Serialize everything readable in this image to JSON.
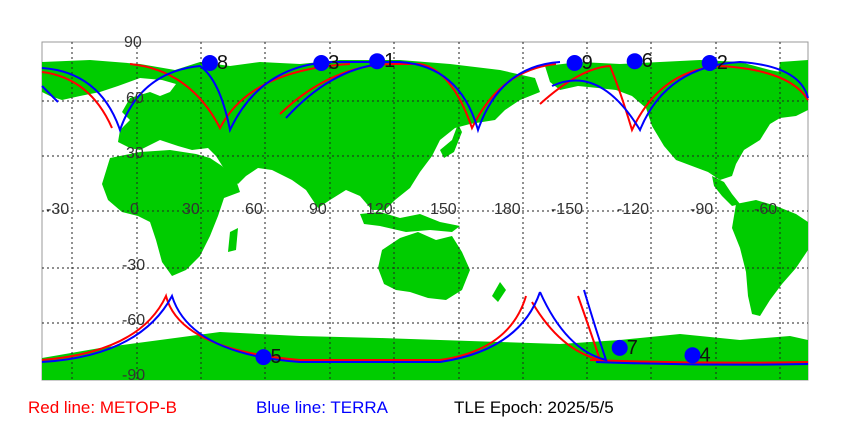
{
  "map": {
    "lat_labels": [
      "90",
      "60",
      "30",
      "-30",
      "-60",
      "-90"
    ],
    "lon_labels": [
      "-30",
      "0",
      "30",
      "60",
      "90",
      "120",
      "150",
      "180",
      "-150",
      "-120",
      "-90",
      "-60"
    ],
    "colors": {
      "land": "#00cc00",
      "ocean": "#ffffff",
      "grid": "#222222",
      "point": "#0000ff",
      "red_track": "#ff0000",
      "blue_track": "#0000ff"
    }
  },
  "points": [
    {
      "id": "1",
      "lon": 112,
      "lat": 81
    },
    {
      "id": "2",
      "lon": -93,
      "lat": 80
    },
    {
      "id": "3",
      "lon": 86,
      "lat": 80
    },
    {
      "id": "4",
      "lon": -101,
      "lat": -78
    },
    {
      "id": "5",
      "lon": 59,
      "lat": -79
    },
    {
      "id": "6",
      "lon": -128,
      "lat": 81
    },
    {
      "id": "7",
      "lon": -135,
      "lat": -74
    },
    {
      "id": "8",
      "lon": 34,
      "lat": 80
    },
    {
      "id": "9",
      "lon": -156,
      "lat": 80
    }
  ],
  "legend": {
    "red": "Red line: METOP-B",
    "blue": "Blue line: TERRA",
    "epoch": "TLE Epoch: 2025/5/5"
  }
}
